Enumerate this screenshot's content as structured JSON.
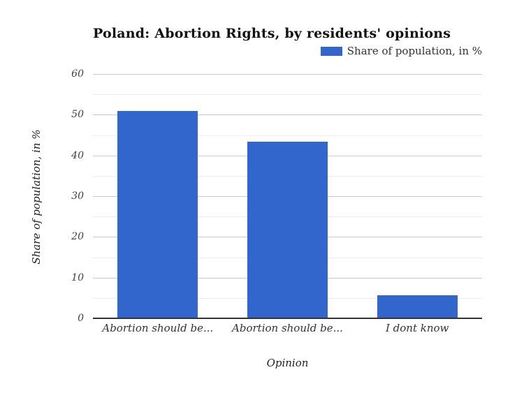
{
  "chart": {
    "title": "Poland: Abortion Rights, by residents' opinions",
    "legend": {
      "label": "Share of population, in %",
      "swatch_color": "#3366cc"
    },
    "x_axis_title": "Opinion",
    "y_axis_title": "Share of population, in %"
  },
  "chart_data": {
    "type": "bar",
    "title": "Poland: Abortion Rights, by residents' opinions",
    "categories": [
      "Abortion should be...",
      "Abortion should be...",
      "I dont know"
    ],
    "values": [
      50.7,
      43.2,
      5.5
    ],
    "series": [
      {
        "name": "Share of population, in %",
        "values": [
          50.7,
          43.2,
          5.5
        ]
      }
    ],
    "xlabel": "Opinion",
    "ylabel": "Share of population, in %",
    "ylim": [
      0,
      60
    ],
    "y_major_ticks": [
      0,
      10,
      20,
      30,
      40,
      50,
      60
    ],
    "y_minor_step": 5,
    "bar_color": "#3366cc",
    "grid": true,
    "legend_position": "top-right",
    "axis_line_color": "#333333",
    "major_grid_color": "#cccccc",
    "minor_grid_color": "#ececec"
  }
}
